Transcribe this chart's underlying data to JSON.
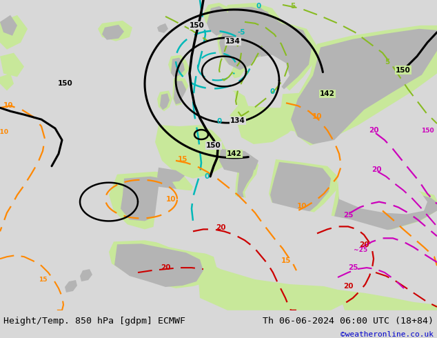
{
  "title_left": "Height/Temp. 850 hPa [gdpm] ECMWF",
  "title_right": "Th 06-06-2024 06:00 UTC (18+84)",
  "credit": "©weatheronline.co.uk",
  "bg_ocean": "#d8d8d8",
  "bg_land_green": "#c8e89a",
  "bg_land_gray": "#b4b4b4",
  "footer_bg": "#d8d8d8",
  "text_color": "#000000",
  "credit_color": "#0000cc",
  "black": "#000000",
  "cyan": "#00b8b8",
  "orange": "#ff8800",
  "red": "#cc0000",
  "magenta": "#cc00bb",
  "lime": "#88bb22",
  "title_fontsize": 9.5,
  "credit_fontsize": 8,
  "label_fontsize": 7.5
}
